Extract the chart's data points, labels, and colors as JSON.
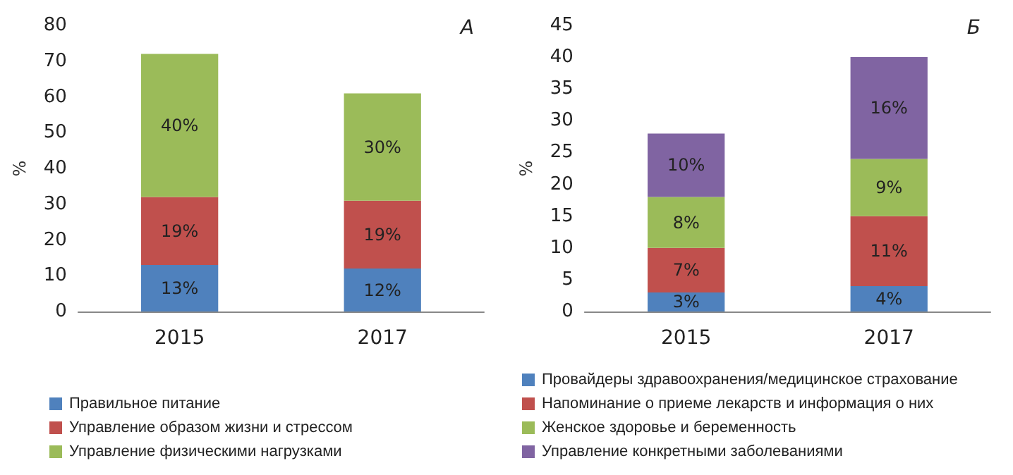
{
  "chart_data": [
    {
      "type": "bar",
      "title": "А",
      "ylabel": "%",
      "categories": [
        "2015",
        "2017"
      ],
      "stacked": true,
      "legend": "bottom",
      "grid": false,
      "ylim": [
        0,
        80
      ],
      "yticks": [
        0,
        10,
        20,
        30,
        40,
        50,
        60,
        70,
        80
      ],
      "series": [
        {
          "name": "Правильное питание",
          "color": "#4f81bd",
          "values": [
            13,
            12
          ],
          "value_labels": [
            "13%",
            "12%"
          ]
        },
        {
          "name": "Управление образом жизни и стрессом",
          "color": "#c0504d",
          "values": [
            19,
            19
          ],
          "value_labels": [
            "19%",
            "19%"
          ]
        },
        {
          "name": "Управление физическими нагрузками",
          "color": "#9bbb59",
          "values": [
            40,
            30
          ],
          "value_labels": [
            "40%",
            "30%"
          ]
        }
      ]
    },
    {
      "type": "bar",
      "title": "Б",
      "ylabel": "%",
      "categories": [
        "2015",
        "2017"
      ],
      "stacked": true,
      "legend": "bottom",
      "grid": false,
      "ylim": [
        0,
        45
      ],
      "yticks": [
        0,
        5,
        10,
        15,
        20,
        25,
        30,
        35,
        40,
        45
      ],
      "series": [
        {
          "name": "Провайдеры здравоохранения/медицинское страхование",
          "color": "#4f81bd",
          "values": [
            3,
            4
          ],
          "value_labels": [
            "3%",
            "4%"
          ]
        },
        {
          "name": "Напоминание о приеме лекарств и информация о них",
          "color": "#c0504d",
          "values": [
            7,
            11
          ],
          "value_labels": [
            "7%",
            "11%"
          ]
        },
        {
          "name": "Женское здоровье и беременность",
          "color": "#9bbb59",
          "values": [
            8,
            9
          ],
          "value_labels": [
            "8%",
            "9%"
          ]
        },
        {
          "name": "Управление конкретными заболеваниями",
          "color": "#8064a2",
          "values": [
            10,
            16
          ],
          "value_labels": [
            "10%",
            "16%"
          ]
        }
      ]
    }
  ]
}
